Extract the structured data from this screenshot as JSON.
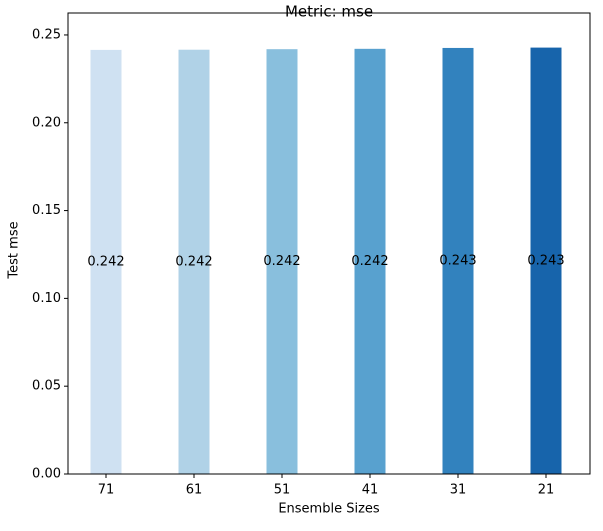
{
  "chart_data": {
    "type": "bar",
    "title": "Metric: mse",
    "x_label": "Ensemble Sizes",
    "y_label": "Test mse",
    "categories": [
      "71",
      "61",
      "51",
      "41",
      "31",
      "21"
    ],
    "values": [
      0.2415,
      0.2416,
      0.2419,
      0.2421,
      0.2426,
      0.2428
    ],
    "value_labels": [
      "0.242",
      "0.242",
      "0.242",
      "0.242",
      "0.243",
      "0.243"
    ],
    "colors": [
      "#cfe1f2",
      "#b0d2e7",
      "#89bfdd",
      "#58a1cf",
      "#3282be",
      "#1764ab"
    ],
    "ylim": [
      0,
      0.2625
    ],
    "yticks": [
      {
        "value": 0,
        "label": "0.00"
      },
      0.05,
      {
        "value": 0.1,
        "label": "0.10"
      },
      0.15,
      {
        "value": 0.2,
        "label": "0.20"
      },
      0.25
    ]
  }
}
